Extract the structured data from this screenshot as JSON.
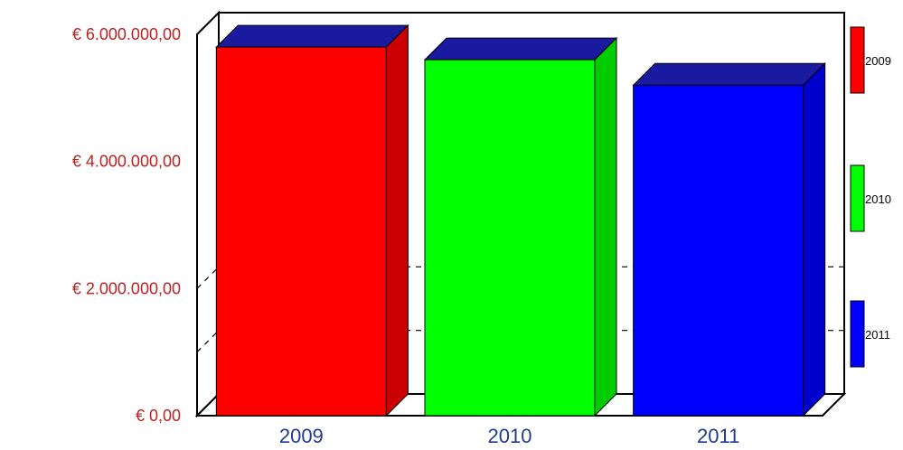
{
  "chart_data": {
    "type": "bar",
    "categories": [
      "2009",
      "2010",
      "2011"
    ],
    "values": [
      5800000,
      5600000,
      5200000
    ],
    "ylim": [
      0,
      6000000
    ],
    "y_ticks": [
      0,
      2000000,
      4000000,
      6000000
    ],
    "y_tick_labels": [
      "€ 0,00",
      "€ 2.000.000,00",
      "€ 4.000.000,00",
      "€ 6.000.000,00"
    ],
    "legend": [
      "2009",
      "2010",
      "2011"
    ],
    "legend_placement": "right",
    "style": "3d",
    "grid": "dashed",
    "colors": {
      "bars": [
        "#ff0000",
        "#00ff00",
        "#0000ff"
      ],
      "bar_sides": [
        "#cc0000",
        "#00cc00",
        "#0000cc"
      ],
      "y_tick_text": "#c0201f",
      "x_tick_text": "#1f3a93"
    }
  }
}
